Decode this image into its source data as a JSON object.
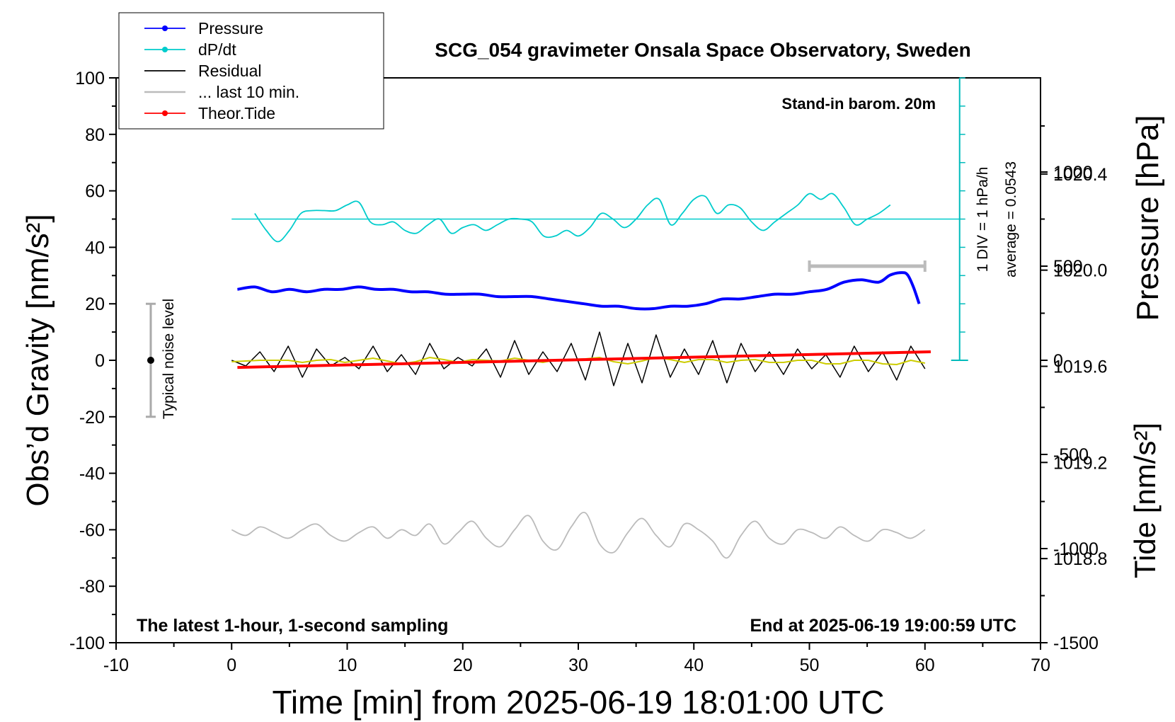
{
  "chart_data": {
    "type": "line",
    "title": "SCG_054 gravimeter Onsala Space Observatory, Sweden",
    "xlabel": "Time [min] from 2025-06-19 18:01:00 UTC",
    "ylabel_left": "Obs’d Gravity [nm/s²]",
    "ylabel_right_top": "Pressure [hPa]",
    "ylabel_right_bottom": "Tide [nm/s²]",
    "xlim": [
      -10,
      70
    ],
    "ylim": [
      -100,
      100
    ],
    "pressure_lim": [
      1018.45,
      1020.8
    ],
    "tide_lim": [
      -1500,
      1500
    ],
    "grid": false,
    "x_ticks": [
      "-10",
      "0",
      "10",
      "20",
      "30",
      "40",
      "50",
      "60",
      "70"
    ],
    "y_ticks": [
      "100",
      "80",
      "60",
      "40",
      "20",
      "0",
      "-20",
      "-40",
      "-60",
      "-80",
      "-100"
    ],
    "pressure_ticks": [
      "1020.4",
      "1020.0",
      "1019.6",
      "1019.2",
      "1018.8"
    ],
    "tide_ticks": [
      "1000",
      "500",
      "0",
      "-500",
      "-1000",
      "-1500"
    ],
    "legend_position": "top-left",
    "legend": [
      {
        "label": "Pressure",
        "color": "#0000ff",
        "marker": true
      },
      {
        "label": "dP/dt",
        "color": "#00cccc",
        "marker": true
      },
      {
        "label": "Residual",
        "color": "#000000",
        "marker": false
      },
      {
        "label": "... last 10 min.",
        "color": "#bbbbbb",
        "marker": false
      },
      {
        "label": "Theor.Tide",
        "color": "#ff0000",
        "marker": true
      }
    ],
    "annotations": {
      "barometer": "Stand-in barom. 20m",
      "dpdt_scale": "1 DIV = 1 hPa/h",
      "dpdt_average": "average = 0.0543",
      "noise_label": "Typical noise level",
      "bottom_left": "The latest 1-hour, 1-second sampling",
      "bottom_right": "End at 2025-06-19 19:00:59 UTC"
    },
    "series": [
      {
        "name": "Pressure",
        "color": "#0000ff",
        "axis": "pressure",
        "x": [
          0.5,
          2,
          3.5,
          5,
          6.5,
          8,
          9.5,
          11,
          12.5,
          14,
          15.5,
          17,
          18.5,
          20,
          21.5,
          23,
          24.5,
          26,
          27.5,
          29,
          30.5,
          32,
          33.5,
          35,
          36.5,
          38,
          39.5,
          41,
          42.5,
          44,
          45.5,
          47,
          48.5,
          50,
          51.5,
          53,
          54.5,
          56,
          57,
          58,
          58.5,
          59,
          59.5
        ],
        "values": [
          1019.92,
          1019.93,
          1019.91,
          1019.92,
          1019.91,
          1019.92,
          1019.92,
          1019.93,
          1019.92,
          1019.92,
          1019.91,
          1019.91,
          1019.9,
          1019.9,
          1019.9,
          1019.89,
          1019.89,
          1019.89,
          1019.88,
          1019.87,
          1019.86,
          1019.85,
          1019.85,
          1019.84,
          1019.84,
          1019.85,
          1019.85,
          1019.86,
          1019.88,
          1019.88,
          1019.89,
          1019.9,
          1019.9,
          1019.91,
          1019.92,
          1019.95,
          1019.96,
          1019.95,
          1019.98,
          1019.99,
          1019.98,
          1019.93,
          1019.86
        ]
      },
      {
        "name": "dP/dt",
        "color": "#00cccc",
        "axis": "left",
        "x": [
          2,
          3,
          4,
          5,
          6,
          7,
          8,
          9,
          10,
          11,
          12,
          13,
          14,
          15,
          16,
          17,
          18,
          19,
          20,
          21,
          22,
          23,
          24,
          25,
          26,
          27,
          28,
          29,
          30,
          31,
          32,
          33,
          34,
          35,
          36,
          37,
          38,
          39,
          40,
          41,
          42,
          43,
          44,
          45,
          46,
          47,
          48,
          49,
          50,
          51,
          52,
          53,
          54,
          55,
          56,
          57
        ],
        "values": [
          52,
          46,
          42,
          46,
          52,
          53,
          53,
          53,
          55,
          56,
          49,
          48,
          49,
          46,
          45,
          48,
          50,
          45,
          47,
          48,
          46,
          48,
          50,
          50,
          49,
          44,
          44,
          46,
          44,
          47,
          52,
          50,
          47,
          50,
          55,
          57,
          48,
          52,
          57,
          58,
          52,
          55,
          54,
          49,
          46,
          49,
          52,
          55,
          59,
          57,
          59,
          54,
          48,
          50,
          52,
          55
        ]
      },
      {
        "name": "Residual",
        "color": "#000000",
        "axis": "left",
        "x_range": [
          0,
          60
        ],
        "values": [
          0,
          -2,
          3,
          -4,
          5,
          -6,
          4,
          -2,
          1,
          -3,
          5,
          -4,
          2,
          -5,
          6,
          -3,
          1,
          -2,
          4,
          -6,
          7,
          -5,
          3,
          -4,
          6,
          -7,
          10,
          -9,
          6,
          -8,
          9,
          -6,
          4,
          -5,
          7,
          -8,
          6,
          -4,
          3,
          -5,
          4,
          -3,
          2,
          -6,
          5,
          -4,
          3,
          -7,
          5,
          -3
        ]
      },
      {
        "name": "... last 10 min.",
        "color": "#bbbbbb",
        "axis": "left",
        "x_range": [
          0,
          60
        ],
        "values": [
          -60,
          -62,
          -59,
          -61,
          -63,
          -60,
          -58,
          -62,
          -64,
          -61,
          -59,
          -63,
          -60,
          -62,
          -58,
          -65,
          -61,
          -57,
          -63,
          -66,
          -60,
          -55,
          -64,
          -67,
          -59,
          -54,
          -65,
          -68,
          -61,
          -56,
          -62,
          -66,
          -58,
          -60,
          -64,
          -70,
          -62,
          -57,
          -63,
          -65,
          -60,
          -61,
          -63,
          -59,
          -62,
          -64,
          -60,
          -61,
          -63,
          -60
        ]
      },
      {
        "name": "Theor.Tide",
        "color": "#ff0000",
        "axis": "tide",
        "x": [
          0.5,
          60.5
        ],
        "values": [
          -38,
          45
        ]
      }
    ]
  }
}
